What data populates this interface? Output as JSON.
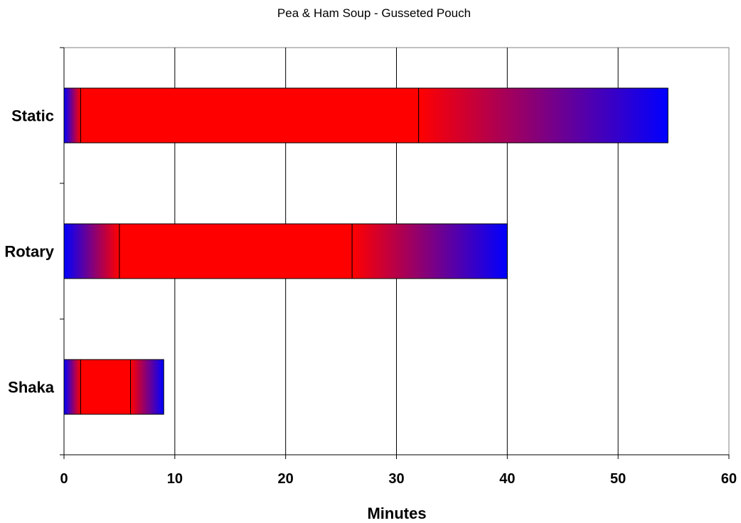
{
  "chart_data": {
    "type": "bar",
    "orientation": "horizontal",
    "stacked": true,
    "title": "Pea & Ham Soup - Gusseted Pouch",
    "xlabel": "Minutes",
    "ylabel": "",
    "xlim": [
      0,
      60
    ],
    "x_ticks": [
      0,
      10,
      20,
      30,
      40,
      50,
      60
    ],
    "grid": true,
    "legend": "none",
    "categories": [
      "Static",
      "Rotary",
      "Shaka"
    ],
    "series": [
      {
        "values": [
          1.5,
          5,
          1.5
        ],
        "fill": "gradient",
        "colors": [
          "#0000ff",
          "#ff0000"
        ]
      },
      {
        "values": [
          30.5,
          21,
          4.5
        ],
        "fill": "solid",
        "colors": [
          "#ff0000"
        ]
      },
      {
        "values": [
          22.5,
          14,
          3
        ],
        "fill": "gradient",
        "colors": [
          "#ff0000",
          "#0000ff"
        ]
      }
    ]
  }
}
